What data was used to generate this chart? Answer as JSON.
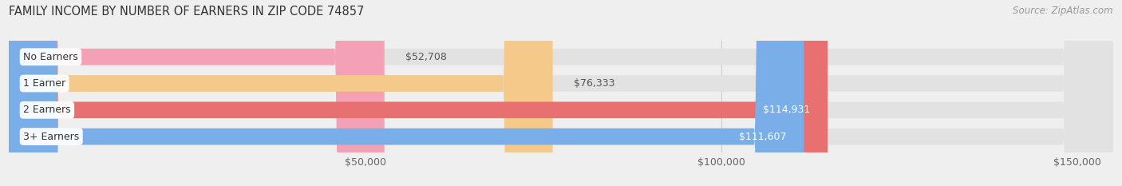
{
  "title": "FAMILY INCOME BY NUMBER OF EARNERS IN ZIP CODE 74857",
  "source": "Source: ZipAtlas.com",
  "categories": [
    "No Earners",
    "1 Earner",
    "2 Earners",
    "3+ Earners"
  ],
  "values": [
    52708,
    76333,
    114931,
    111607
  ],
  "labels": [
    "$52,708",
    "$76,333",
    "$114,931",
    "$111,607"
  ],
  "bar_colors": [
    "#f4a0b5",
    "#f5c98a",
    "#e87070",
    "#7aaee8"
  ],
  "label_inside": [
    false,
    false,
    true,
    true
  ],
  "bg_color": "#efefef",
  "bar_bg_color": "#e2e2e2",
  "xlim": [
    0,
    155000
  ],
  "xticks": [
    50000,
    100000,
    150000
  ],
  "xtick_labels": [
    "$50,000",
    "$100,000",
    "$150,000"
  ],
  "figsize": [
    14.06,
    2.33
  ],
  "dpi": 100
}
